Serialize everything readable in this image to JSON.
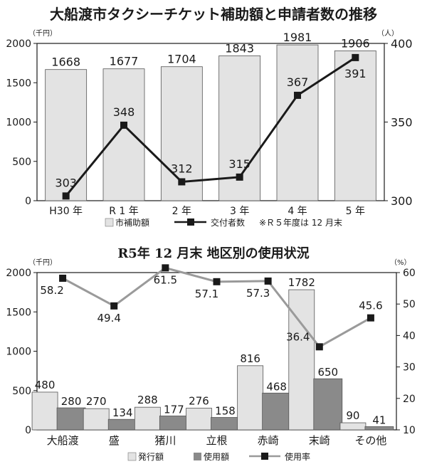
{
  "chart_data": [
    {
      "type": "bar",
      "title": "大船渡市タクシーチケット補助額と申請者数の推移",
      "left_unit": "（千円）",
      "right_unit": "（人）",
      "categories": [
        "H30 年",
        "R 1 年",
        "2 年",
        "3 年",
        "4 年",
        "5 年"
      ],
      "series": [
        {
          "name": "市補助額",
          "type": "bar",
          "axis": "left",
          "color": "#e3e3e3",
          "values": [
            1668,
            1677,
            1704,
            1843,
            1981,
            1906
          ]
        },
        {
          "name": "交付者数",
          "type": "line",
          "axis": "right",
          "color": "#1a1a1a",
          "values": [
            303,
            348,
            312,
            315,
            367,
            391
          ]
        }
      ],
      "ylim_left": [
        0,
        2000
      ],
      "yticks_left": [
        0,
        500,
        1000,
        1500,
        2000
      ],
      "ylim_right": [
        300,
        400
      ],
      "yticks_right": [
        300,
        350,
        400
      ],
      "legend_note": "※Ｒ５年度は 12 月末",
      "grid": false,
      "legend_position": "bottom"
    },
    {
      "type": "bar",
      "title": "R5年 12 月末 地区別の使用状況",
      "left_unit": "（千円）",
      "right_unit": "（%）",
      "categories": [
        "大船渡",
        "盛",
        "猪川",
        "立根",
        "赤崎",
        "末崎",
        "その他"
      ],
      "series": [
        {
          "name": "発行額",
          "type": "bar",
          "axis": "left",
          "color": "#e3e3e3",
          "values": [
            480,
            270,
            288,
            276,
            816,
            1782,
            90
          ]
        },
        {
          "name": "使用額",
          "type": "bar",
          "axis": "left",
          "color": "#8a8a8a",
          "values": [
            280,
            134,
            177,
            158,
            468,
            650,
            41
          ]
        },
        {
          "name": "使用率",
          "type": "line",
          "axis": "right",
          "color": "#9a9a9a",
          "values": [
            58.2,
            49.4,
            61.5,
            57.1,
            57.3,
            36.4,
            45.6
          ]
        }
      ],
      "ylim_left": [
        0,
        2000
      ],
      "yticks_left": [
        0,
        500,
        1000,
        1500,
        2000
      ],
      "ylim_right": [
        10,
        60
      ],
      "yticks_right": [
        10,
        20,
        30,
        40,
        50,
        60
      ],
      "grid": false,
      "legend_position": "bottom"
    }
  ]
}
